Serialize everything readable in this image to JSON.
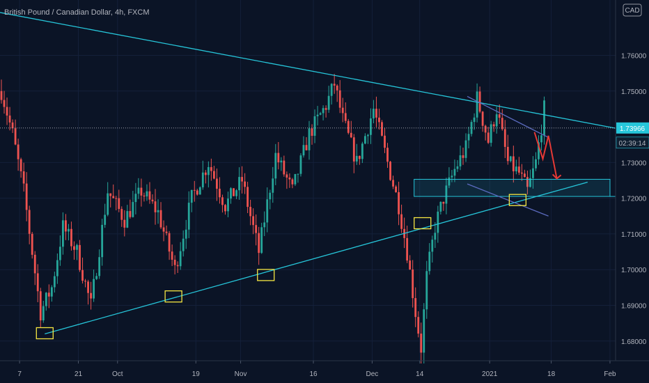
{
  "chart_data": {
    "type": "candlestick",
    "title": "British Pound / Canadian Dollar, 4h, FXCM",
    "currency": "CAD",
    "ylim": [
      1.6745,
      1.7755
    ],
    "y_ticks": [
      "1.76000",
      "1.75000",
      "1.73000",
      "1.72000",
      "1.71000",
      "1.70000",
      "1.69000",
      "1.68000"
    ],
    "y_tick_values": [
      1.76,
      1.75,
      1.73,
      1.72,
      1.71,
      1.7,
      1.69,
      1.68
    ],
    "x_ticks": [
      "7",
      "21",
      "Oct",
      "19",
      "Nov",
      "16",
      "Dec",
      "14",
      "2021",
      "18",
      "Feb"
    ],
    "x_tick_slots": [
      7,
      28,
      42,
      70,
      86,
      112,
      133,
      150,
      175,
      197,
      218
    ],
    "slot_count": 220,
    "last_price": "1.73966",
    "last_price_value": 1.73966,
    "countdown": "02:39:14",
    "price_path": [
      [
        0,
        1.75
      ],
      [
        4,
        1.738
      ],
      [
        8,
        1.722
      ],
      [
        11,
        1.705
      ],
      [
        14,
        1.688
      ],
      [
        18,
        1.695
      ],
      [
        22,
        1.712
      ],
      [
        27,
        1.705
      ],
      [
        32,
        1.69
      ],
      [
        38,
        1.722
      ],
      [
        44,
        1.714
      ],
      [
        50,
        1.722
      ],
      [
        56,
        1.716
      ],
      [
        62,
        1.7
      ],
      [
        68,
        1.72
      ],
      [
        74,
        1.73
      ],
      [
        80,
        1.718
      ],
      [
        86,
        1.725
      ],
      [
        92,
        1.705
      ],
      [
        98,
        1.732
      ],
      [
        104,
        1.722
      ],
      [
        110,
        1.738
      ],
      [
        116,
        1.746
      ],
      [
        119,
        1.752
      ],
      [
        122,
        1.742
      ],
      [
        127,
        1.73
      ],
      [
        133,
        1.745
      ],
      [
        138,
        1.73
      ],
      [
        142,
        1.718
      ],
      [
        145,
        1.705
      ],
      [
        148,
        1.688
      ],
      [
        150,
        1.678
      ],
      [
        152,
        1.698
      ],
      [
        155,
        1.712
      ],
      [
        158,
        1.72
      ],
      [
        162,
        1.728
      ],
      [
        166,
        1.734
      ],
      [
        170,
        1.748
      ],
      [
        174,
        1.736
      ],
      [
        177,
        1.745
      ],
      [
        181,
        1.73
      ],
      [
        185,
        1.727
      ],
      [
        188,
        1.722
      ],
      [
        191,
        1.73
      ],
      [
        194,
        1.745
      ]
    ],
    "lines": [
      {
        "name": "Upper trendline",
        "points": [
          [
            0,
            1.772
          ],
          [
            220,
            1.7396
          ]
        ],
        "color": "#26c6da"
      },
      {
        "name": "Lower trendline",
        "points": [
          [
            16,
            1.682
          ],
          [
            210,
            1.7245
          ]
        ],
        "color": "#26c6da"
      },
      {
        "name": "Channel top",
        "points": [
          [
            167,
            1.7485
          ],
          [
            196,
            1.737
          ]
        ],
        "color": "#5c6bc0"
      },
      {
        "name": "Channel bottom",
        "points": [
          [
            167,
            1.724
          ],
          [
            196,
            1.715
          ]
        ],
        "color": "#5c6bc0"
      }
    ],
    "zone": {
      "x": [
        148,
        218
      ],
      "y": [
        1.7205,
        1.7253
      ],
      "color": "#26c6da"
    },
    "last_price_line": {
      "y": 1.73966,
      "color": "#b2b5be"
    },
    "arrow": {
      "points": [
        [
          191,
          1.7385
        ],
        [
          194,
          1.731
        ],
        [
          196,
          1.7375
        ],
        [
          199,
          1.7255
        ]
      ],
      "color": "#e53935"
    },
    "markers": [
      {
        "slot": 16,
        "y": 1.6822
      },
      {
        "slot": 62,
        "y": 1.6925
      },
      {
        "slot": 95,
        "y": 1.6985
      },
      {
        "slot": 151,
        "y": 1.713
      },
      {
        "slot": 185,
        "y": 1.7195
      }
    ],
    "colors": {
      "background": "#0b1426",
      "up": "#26a69a",
      "down": "#ef5350",
      "marker": "#f5e642",
      "tag": "#26c6da"
    }
  }
}
